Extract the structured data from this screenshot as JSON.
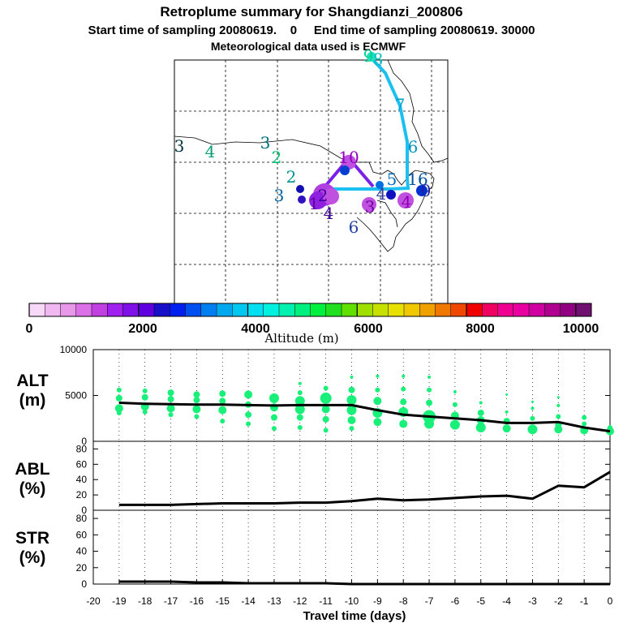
{
  "header": {
    "title": "Retroplume summary for Shangdianzi_200806",
    "subtitle": "Start time of sampling 20080619.    0     End time of sampling 20080619. 30000",
    "meteo": "Meteorological data used is ECMWF"
  },
  "colorbar": {
    "label": "Altitude  (m)",
    "ticks": [
      "0",
      "2000",
      "4000",
      "6000",
      "8000",
      "10000"
    ],
    "range": [
      0,
      10000
    ],
    "colors": [
      "#f8d8f8",
      "#f0b8f0",
      "#e898e8",
      "#dc70e8",
      "#c040e0",
      "#a020f0",
      "#8010e8",
      "#6000e0",
      "#1810c8",
      "#0020f0",
      "#0050f0",
      "#0080f0",
      "#00a8f0",
      "#00c8f0",
      "#00e0f0",
      "#00f0e0",
      "#00f0b0",
      "#00f080",
      "#00f040",
      "#20e020",
      "#60e000",
      "#a0e000",
      "#c8e000",
      "#e8e000",
      "#f0c800",
      "#f0a000",
      "#f07800",
      "#f04800",
      "#f00000",
      "#f00060",
      "#f00090",
      "#e800a0",
      "#d000a0",
      "#b00090",
      "#900080",
      "#701070"
    ]
  },
  "map": {
    "labels": [
      {
        "text": "3",
        "color": "#003040"
      },
      {
        "text": "4",
        "color": "#00a070"
      },
      {
        "text": "3",
        "color": "#007080"
      },
      {
        "text": "2",
        "color": "#00c070"
      },
      {
        "text": "2",
        "color": "#009090"
      },
      {
        "text": "3",
        "color": "#0060a0"
      },
      {
        "text": "9",
        "color": "#00d090"
      },
      {
        "text": "8",
        "color": "#00c0c0"
      },
      {
        "text": "7",
        "color": "#00a0c8"
      },
      {
        "text": "6",
        "color": "#0090c0"
      },
      {
        "text": "5",
        "color": "#0070c0"
      },
      {
        "text": "10",
        "color": "#9000c0"
      },
      {
        "text": "1",
        "color": "#6000a0"
      },
      {
        "text": "2",
        "color": "#4000a0"
      },
      {
        "text": "4",
        "color": "#4000a0"
      },
      {
        "text": "3",
        "color": "#7000a0"
      },
      {
        "text": "6",
        "color": "#2040a0"
      },
      {
        "text": "4",
        "color": "#3040a0"
      },
      {
        "text": "4",
        "color": "#9000b0"
      },
      {
        "text": "16",
        "color": "#0050a0"
      },
      {
        "text": "0",
        "color": "#2020a0"
      }
    ]
  },
  "chart_data": [
    {
      "type": "line",
      "name": "ALT",
      "ylabel": "ALT\n(m)",
      "ylabel_line1": "ALT",
      "ylabel_line2": "(m)",
      "ylim": [
        0,
        10000
      ],
      "yticks": [
        "10000",
        "5000",
        "0"
      ],
      "x": [
        -19,
        -18,
        -17,
        -16,
        -15,
        -14,
        -13,
        -12,
        -11,
        -10,
        -9,
        -8,
        -7,
        -6,
        -5,
        -4,
        -3,
        -2,
        -1,
        0
      ],
      "values": [
        4200,
        4100,
        4050,
        4000,
        4000,
        3950,
        3900,
        3950,
        3950,
        3950,
        3400,
        2900,
        2700,
        2500,
        2300,
        2000,
        2000,
        2100,
        1500,
        1100
      ]
    },
    {
      "type": "line",
      "name": "ABL",
      "ylabel_line1": "ABL",
      "ylabel_line2": "(%)",
      "ylim": [
        0,
        90
      ],
      "yticks": [
        "80",
        "60",
        "40",
        "20",
        "0"
      ],
      "x": [
        -19,
        -18,
        -17,
        -16,
        -15,
        -14,
        -13,
        -12,
        -11,
        -10,
        -9,
        -8,
        -7,
        -6,
        -5,
        -4,
        -3,
        -2,
        -1,
        0
      ],
      "values": [
        7,
        7,
        7,
        8,
        9,
        9,
        9,
        10,
        10,
        12,
        15,
        13,
        14,
        16,
        18,
        19,
        15,
        32,
        30,
        50
      ]
    },
    {
      "type": "line",
      "name": "STR",
      "ylabel_line1": "STR",
      "ylabel_line2": "(%)",
      "ylim": [
        0,
        90
      ],
      "yticks": [
        "80",
        "60",
        "40",
        "20",
        "0"
      ],
      "x": [
        -19,
        -18,
        -17,
        -16,
        -15,
        -14,
        -13,
        -12,
        -11,
        -10,
        -9,
        -8,
        -7,
        -6,
        -5,
        -4,
        -3,
        -2,
        -1,
        0
      ],
      "values": [
        3,
        3,
        3,
        2,
        2,
        1,
        1,
        1,
        1,
        0,
        0,
        0,
        0,
        0,
        0,
        0,
        0,
        0,
        0,
        0
      ]
    }
  ],
  "xaxis": {
    "label": "Travel time (days)",
    "ticks": [
      "-20",
      "-19",
      "-18",
      "-17",
      "-16",
      "-15",
      "-14",
      "-13",
      "-12",
      "-11",
      "-10",
      "-9",
      "-8",
      "-7",
      "-6",
      "-5",
      "-4",
      "-3",
      "-2",
      "-1",
      "0"
    ],
    "range": [
      -20,
      0
    ]
  }
}
